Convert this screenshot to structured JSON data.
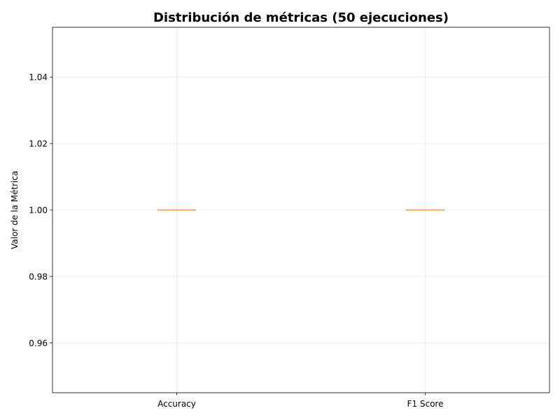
{
  "chart_data": {
    "type": "box",
    "title": "Distribución de métricas (50 ejecuciones)",
    "xlabel": "",
    "ylabel": "Valor de la Métrica",
    "categories": [
      "Accuracy",
      "F1 Score"
    ],
    "series": [
      {
        "name": "Accuracy",
        "min": 1.0,
        "q1": 1.0,
        "median": 1.0,
        "q3": 1.0,
        "max": 1.0
      },
      {
        "name": "F1 Score",
        "min": 1.0,
        "q1": 1.0,
        "median": 1.0,
        "q3": 1.0,
        "max": 1.0
      }
    ],
    "ylim": [
      0.945,
      1.055
    ],
    "yticks": [
      0.96,
      0.98,
      1.0,
      1.02,
      1.04
    ],
    "ytick_labels": [
      "0.96",
      "0.98",
      "1.00",
      "1.02",
      "1.04"
    ],
    "grid": true,
    "colors": {
      "box": "#000000",
      "median": "#ff7f0e",
      "grid": "#b0b0b0"
    }
  }
}
